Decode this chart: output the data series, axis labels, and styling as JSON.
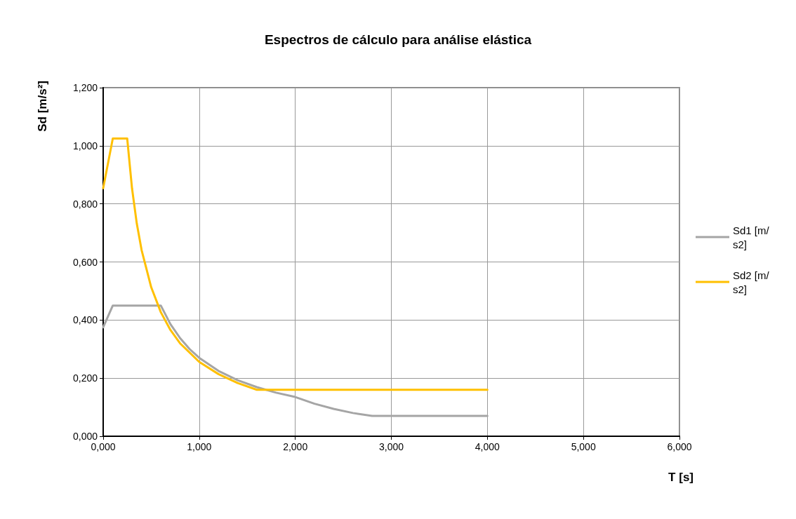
{
  "chart_data": {
    "type": "line",
    "title": "Espectros de cálculo para análise elástica",
    "xlabel": "T [s]",
    "ylabel": "Sd [m/s²]",
    "xlim": [
      0,
      6
    ],
    "xticks": [
      {
        "value": 0,
        "label": "0,000"
      },
      {
        "value": 1,
        "label": "1,000"
      },
      {
        "value": 2,
        "label": "2,000"
      },
      {
        "value": 3,
        "label": "3,000"
      },
      {
        "value": 4,
        "label": "4,000"
      },
      {
        "value": 5,
        "label": "5,000"
      },
      {
        "value": 6,
        "label": "6,000"
      }
    ],
    "ylim": [
      0,
      1.2
    ],
    "yticks": [
      {
        "value": 0,
        "label": "0,000"
      },
      {
        "value": 0.2,
        "label": "0,200"
      },
      {
        "value": 0.4,
        "label": "0,400"
      },
      {
        "value": 0.6,
        "label": "0,600"
      },
      {
        "value": 0.8,
        "label": "0,800"
      },
      {
        "value": 1,
        "label": "1,000"
      },
      {
        "value": 1.2,
        "label": "1,200"
      }
    ],
    "grid": true,
    "legend": "right",
    "marker": "none",
    "line_style": "solid",
    "series": [
      {
        "name": "Sd1 [m/s2]",
        "color": "#a5a5a5",
        "x": [
          0,
          0.1,
          0.6,
          0.7,
          0.8,
          0.9,
          1.0,
          1.2,
          1.4,
          1.6,
          1.8,
          2.0,
          2.2,
          2.4,
          2.6,
          2.8,
          3.0,
          4.0
        ],
        "values": [
          0.375,
          0.45,
          0.45,
          0.386,
          0.338,
          0.3,
          0.27,
          0.225,
          0.193,
          0.169,
          0.15,
          0.135,
          0.112,
          0.094,
          0.08,
          0.07,
          0.07,
          0.07
        ]
      },
      {
        "name": "Sd2 [m/s2]",
        "color": "#ffc000",
        "x": [
          0,
          0.1,
          0.25,
          0.3,
          0.35,
          0.4,
          0.5,
          0.6,
          0.7,
          0.8,
          1.0,
          1.2,
          1.4,
          1.6,
          4.0
        ],
        "values": [
          0.854,
          1.025,
          1.025,
          0.854,
          0.732,
          0.641,
          0.513,
          0.427,
          0.366,
          0.32,
          0.256,
          0.214,
          0.183,
          0.16,
          0.16
        ]
      }
    ]
  }
}
